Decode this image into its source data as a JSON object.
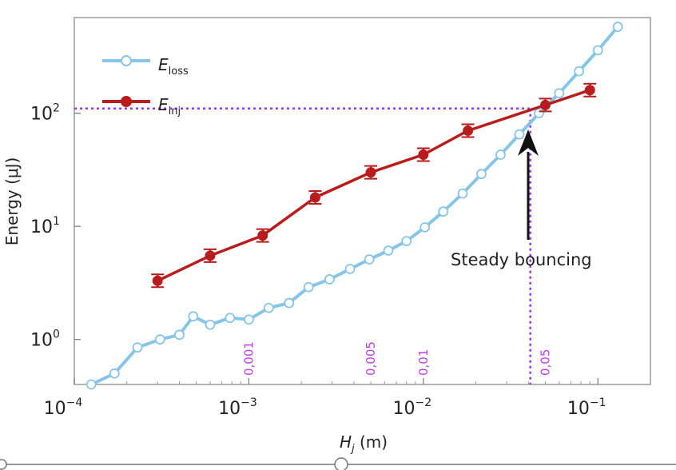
{
  "chart_data": {
    "type": "line",
    "xscale": "log",
    "yscale": "log",
    "xlim": [
      0.0001,
      0.2
    ],
    "ylim": [
      0.4,
      700
    ],
    "x_ticks": [
      {
        "value": 0.0001,
        "base": "10",
        "exp": "−4"
      },
      {
        "value": 0.001,
        "base": "10",
        "exp": "−3"
      },
      {
        "value": 0.01,
        "base": "10",
        "exp": "−2"
      },
      {
        "value": 0.1,
        "base": "10",
        "exp": "−1"
      }
    ],
    "y_ticks": [
      {
        "value": 1,
        "base": "10",
        "exp": "0"
      },
      {
        "value": 10,
        "base": "10",
        "exp": "1"
      },
      {
        "value": 100,
        "base": "10",
        "exp": "2"
      }
    ],
    "xlabel": {
      "symbol": "H",
      "sub": "j",
      "unit": "(m)"
    },
    "ylabel": "Energy (μJ)",
    "legend": {
      "placement": "top-left"
    },
    "series": [
      {
        "name": "E",
        "name_sub": "loss",
        "color": "#86c5e8",
        "marker": "open-circle",
        "x": [
          0.000125,
          0.00017,
          0.00023,
          0.00031,
          0.0004,
          0.00048,
          0.0006,
          0.00078,
          0.001,
          0.0013,
          0.0017,
          0.0022,
          0.0029,
          0.0038,
          0.0049,
          0.0063,
          0.008,
          0.0102,
          0.013,
          0.0168,
          0.0215,
          0.0277,
          0.0355,
          0.046,
          0.06,
          0.078,
          0.1,
          0.13
        ],
        "y": [
          0.4,
          0.5,
          0.85,
          1.0,
          1.1,
          1.6,
          1.35,
          1.55,
          1.5,
          1.9,
          2.1,
          2.9,
          3.4,
          4.2,
          5.1,
          6.1,
          7.4,
          9.8,
          13.5,
          19.5,
          29,
          43,
          65,
          100,
          150,
          235,
          360,
          580
        ]
      },
      {
        "name": "E",
        "name_sub": "inj",
        "color": "#b91c1c",
        "marker": "filled-circle",
        "x": [
          0.0003,
          0.0006,
          0.0012,
          0.0024,
          0.005,
          0.01,
          0.018,
          0.05,
          0.09
        ],
        "y": [
          3.3,
          5.5,
          8.3,
          18,
          30,
          43,
          70,
          118,
          160
        ]
      }
    ],
    "reference_lines": {
      "horizontal_y": 110,
      "vertical_x": 0.041,
      "color": "#9b30ff"
    },
    "annotations": {
      "arrow_text": "Steady bouncing",
      "x_markers": [
        {
          "value": 0.001,
          "label": "0,001"
        },
        {
          "value": 0.005,
          "label": "0,005"
        },
        {
          "value": 0.01,
          "label": "0,01"
        },
        {
          "value": 0.05,
          "label": "0,05"
        }
      ]
    }
  }
}
